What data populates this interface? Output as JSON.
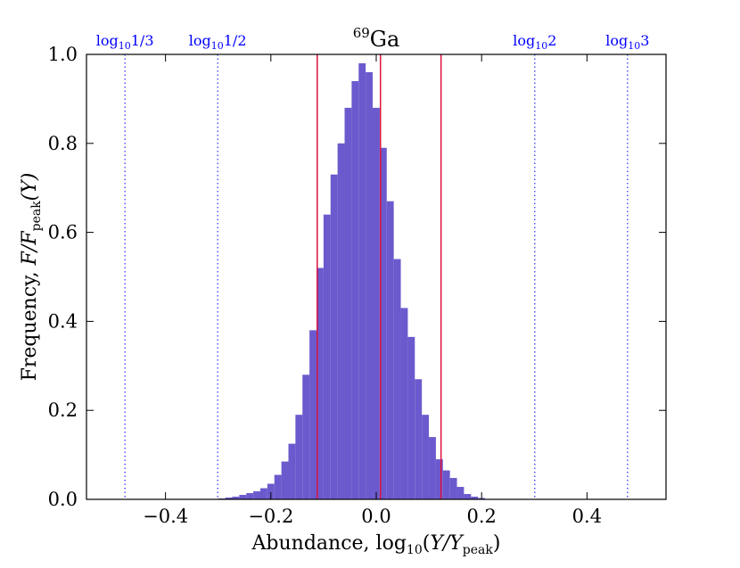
{
  "chart_data": {
    "type": "bar",
    "title": {
      "sup": "69",
      "main": "Ga"
    },
    "xlabel": {
      "prefix": "Abundance, ",
      "log": "log",
      "logsub": "10",
      "open": "(",
      "var": "Y/Y",
      "varsub": "peak",
      "close": ")"
    },
    "ylabel": {
      "prefix": "Frequency,  ",
      "var": "F/F",
      "varsub": "peak",
      "arg": "(Y)"
    },
    "xlim": [
      -0.55,
      0.55
    ],
    "ylim": [
      0.0,
      1.0
    ],
    "xticks": [
      -0.4,
      -0.2,
      0.0,
      0.2,
      0.4
    ],
    "xtick_labels": [
      "−0.4",
      "−0.2",
      "0.0",
      "0.2",
      "0.4"
    ],
    "yticks": [
      0.0,
      0.2,
      0.4,
      0.6,
      0.8,
      1.0
    ],
    "ytick_labels": [
      "0.0",
      "0.2",
      "0.4",
      "0.6",
      "0.8",
      "1.0"
    ],
    "grid": false,
    "bar_color": "#6a5acd",
    "bin_width": 0.01333,
    "bin_start": -0.3,
    "values": [
      0.002,
      0.004,
      0.006,
      0.01,
      0.014,
      0.018,
      0.025,
      0.035,
      0.055,
      0.085,
      0.125,
      0.19,
      0.28,
      0.38,
      0.52,
      0.64,
      0.73,
      0.8,
      0.88,
      0.94,
      0.98,
      0.96,
      0.88,
      0.79,
      0.67,
      0.54,
      0.43,
      0.365,
      0.27,
      0.19,
      0.14,
      0.09,
      0.065,
      0.048,
      0.028,
      0.012,
      0.006,
      0.003,
      0.001
    ],
    "ref_lines": {
      "color": "#0000ff",
      "style": "dotted",
      "items": [
        {
          "x": -0.477,
          "label": {
            "log": "log",
            "sub": "10",
            "arg": "1/3"
          }
        },
        {
          "x": -0.301,
          "label": {
            "log": "log",
            "sub": "10",
            "arg": "1/2"
          }
        },
        {
          "x": 0.301,
          "label": {
            "log": "log",
            "sub": "10",
            "arg": "2"
          }
        },
        {
          "x": 0.477,
          "label": {
            "log": "log",
            "sub": "10",
            "arg": "3"
          }
        }
      ]
    },
    "red_lines": {
      "color": "#dc143c",
      "x": [
        -0.112,
        0.008,
        0.123
      ]
    }
  }
}
